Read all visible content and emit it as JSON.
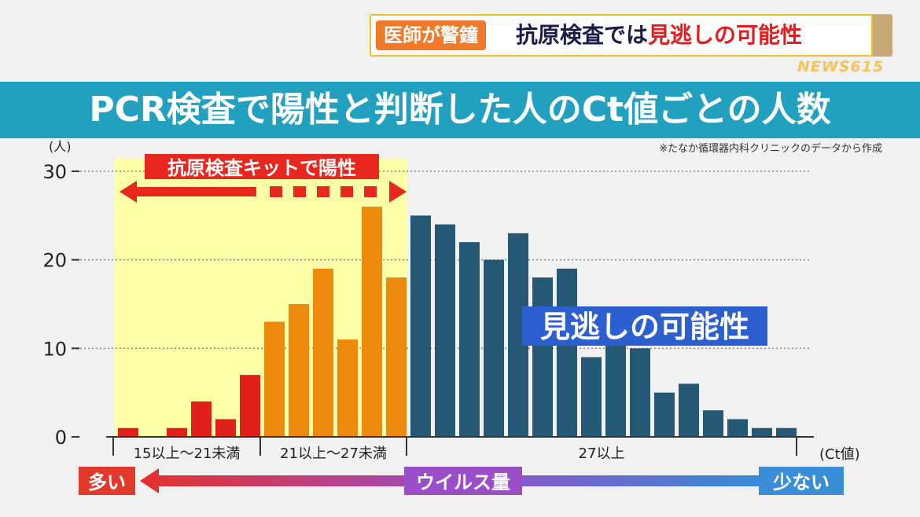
{
  "caption": {
    "tag": "医師が警鐘",
    "text_dark": "抗原検査では",
    "text_red": "見逃しの可能性"
  },
  "network_logo": "NEWS615",
  "banner_title": "PCR検査で陽性と判断した人のCt値ごとの人数",
  "source_note": "※たなか循環器内科クリニックのデータから作成",
  "chart_data": {
    "type": "bar",
    "ylabel": "(人)",
    "xlabel": "(Ct値)",
    "ylim": [
      0,
      30
    ],
    "yticks": [
      0,
      10,
      20,
      30
    ],
    "grid": true,
    "values": [
      1,
      0,
      1,
      4,
      2,
      7,
      13,
      15,
      19,
      11,
      26,
      18,
      25,
      24,
      22,
      20,
      23,
      18,
      19,
      9,
      11,
      10,
      5,
      6,
      3,
      2,
      1,
      1
    ],
    "groups": [
      {
        "label": "15以上〜21未満",
        "count": 6,
        "color": "#e0201a"
      },
      {
        "label": "21以上〜27未満",
        "count": 6,
        "color": "#ec8a0e"
      },
      {
        "label": "27以上",
        "count": 16,
        "color": "#255875"
      }
    ],
    "highlight_label": "抗原検査キットで陽性",
    "highlight_color": "#ffffa8",
    "annotation": "見逃しの可能性",
    "annotation_color": "#2c5fd0"
  },
  "virus_axis": {
    "left": "多い",
    "center": "ウイルス量",
    "right": "少ない",
    "left_color": "#e23a2a",
    "right_color": "#3a8ed8"
  }
}
